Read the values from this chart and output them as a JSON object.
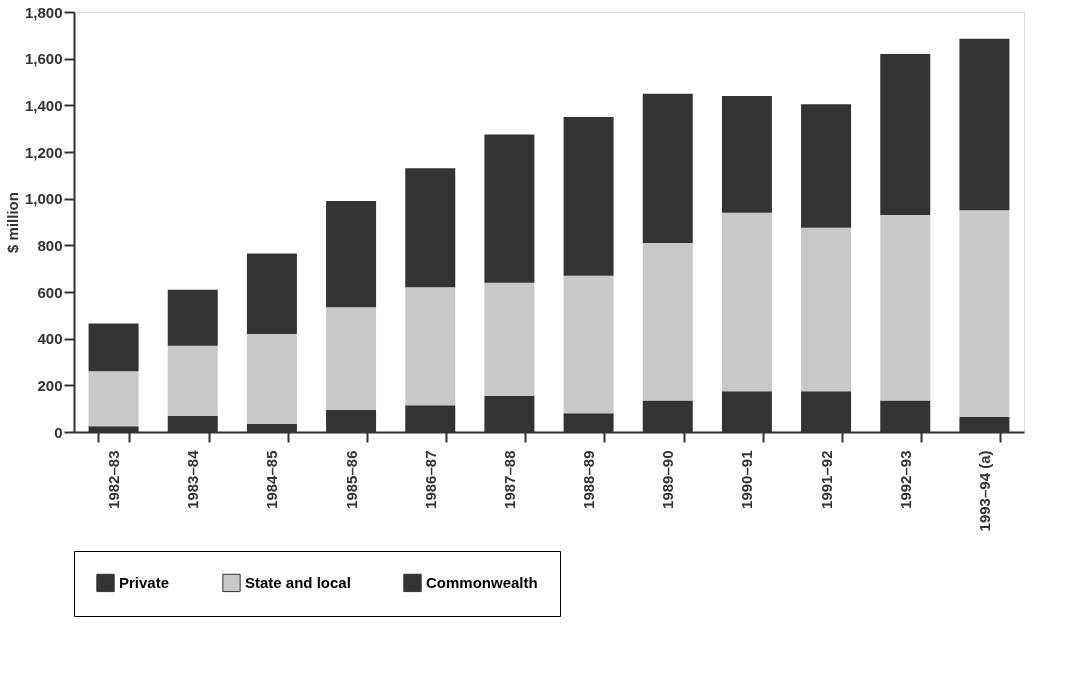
{
  "chart_data": {
    "type": "bar",
    "stacked": true,
    "ylabel": "$ million",
    "categories": [
      "1982–83",
      "1983–84",
      "1984–85",
      "1985–86",
      "1986–87",
      "1987–88",
      "1988–89",
      "1989–90",
      "1990–91",
      "1991–92",
      "1992–93",
      "1993–94 (a)"
    ],
    "series": [
      {
        "name": "Commonwealth",
        "color": "#333333",
        "values": [
          25,
          70,
          35,
          95,
          115,
          155,
          80,
          135,
          175,
          175,
          135,
          65
        ]
      },
      {
        "name": "State and local",
        "color": "#c8c8c8",
        "values": [
          235,
          300,
          385,
          440,
          505,
          485,
          590,
          675,
          765,
          700,
          795,
          885
        ]
      },
      {
        "name": "Private",
        "color": "#333333",
        "values": [
          205,
          240,
          345,
          455,
          510,
          635,
          680,
          640,
          500,
          530,
          690,
          735
        ]
      }
    ],
    "ylim": [
      0,
      1800
    ],
    "yticks": [
      0,
      200,
      400,
      600,
      800,
      {
        "value": 1000,
        "label": "1,000"
      },
      {
        "value": 1200,
        "label": "1,200"
      },
      {
        "value": 1400,
        "label": "1,400"
      },
      {
        "value": 1600,
        "label": "1,600"
      },
      {
        "value": 1800,
        "label": "1,800"
      }
    ],
    "grid": false,
    "legend": "bottom"
  }
}
